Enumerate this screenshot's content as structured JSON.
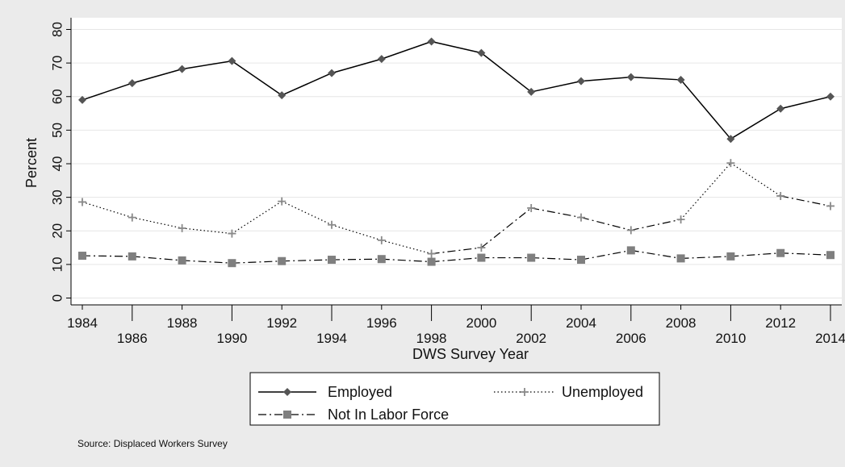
{
  "chart_data": {
    "type": "line",
    "title": "",
    "xlabel": "DWS Survey Year",
    "ylabel": "Percent",
    "x": [
      1984,
      1986,
      1988,
      1990,
      1992,
      1994,
      1996,
      1998,
      2000,
      2002,
      2004,
      2006,
      2008,
      2010,
      2012,
      2014
    ],
    "x_tick_labels": [
      "1984",
      "1986",
      "1988",
      "1990",
      "1992",
      "1994",
      "1996",
      "1998",
      "2000",
      "2002",
      "2004",
      "2006",
      "2008",
      "2010",
      "2012",
      "2014"
    ],
    "ylim": [
      0,
      80
    ],
    "y_ticks": [
      0,
      10,
      20,
      30,
      40,
      50,
      60,
      70,
      80
    ],
    "y_tick_labels": [
      "0",
      "10",
      "20",
      "30",
      "40",
      "50",
      "60",
      "70",
      "80"
    ],
    "grid": true,
    "legend_position": "bottom",
    "series": [
      {
        "name": "Employed",
        "marker": "diamond",
        "line": "solid",
        "color": "#000000",
        "marker_color": "#555555",
        "values": [
          59.0,
          64.0,
          68.2,
          70.6,
          60.4,
          67.0,
          71.2,
          76.4,
          73.0,
          61.4,
          64.6,
          65.8,
          65.0,
          47.4,
          56.4,
          60.0
        ]
      },
      {
        "name": "Unemployed",
        "marker": "plus",
        "line": "mixed",
        "color": "#000000",
        "marker_color": "#8a8a8a",
        "values": [
          28.6,
          24.0,
          20.8,
          19.2,
          28.8,
          21.8,
          17.2,
          13.2,
          15.0,
          26.8,
          24.0,
          20.2,
          23.4,
          40.2,
          30.4,
          27.4
        ]
      },
      {
        "name": "Not In Labor Force",
        "marker": "square",
        "line": "dashdot",
        "color": "#000000",
        "marker_color": "#7f7f7f",
        "values": [
          12.6,
          12.4,
          11.2,
          10.4,
          11.0,
          11.4,
          11.6,
          10.8,
          12.0,
          12.0,
          11.4,
          14.2,
          11.8,
          12.4,
          13.4,
          12.8
        ]
      }
    ],
    "note": "Source: Displaced Workers Survey"
  }
}
